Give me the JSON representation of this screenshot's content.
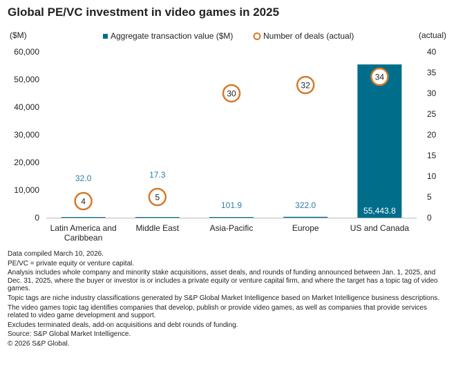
{
  "chart_data": {
    "type": "bar",
    "title": "Global PE/VC investment in video games in 2025",
    "categories": [
      "Latin America and\nCaribbean",
      "Middle East",
      "Asia-Pacific",
      "Europe",
      "US and Canada"
    ],
    "series": [
      {
        "name": "Aggregate transaction value ($M)",
        "axis": "left",
        "kind": "bar",
        "values": [
          32.0,
          17.3,
          101.9,
          322.0,
          55443.8
        ],
        "labels": [
          "32.0",
          "17.3",
          "101.9",
          "322.0",
          "55,443.8"
        ]
      },
      {
        "name": "Number of deals (actual)",
        "axis": "right",
        "kind": "marker",
        "values": [
          4,
          5,
          30,
          32,
          34
        ],
        "labels": [
          "4",
          "5",
          "30",
          "32",
          "34"
        ]
      }
    ],
    "yleft": {
      "unit_label": "($M)",
      "ylim": [
        0,
        60000
      ],
      "ticks": [
        "0",
        "10,000",
        "20,000",
        "30,000",
        "40,000",
        "50,000",
        "60,000"
      ]
    },
    "yright": {
      "unit_label": "(actual)",
      "ylim": [
        0,
        40
      ],
      "ticks": [
        "0",
        "5",
        "10",
        "15",
        "20",
        "25",
        "30",
        "35",
        "40"
      ]
    },
    "legend": "top",
    "grid": false
  },
  "colors": {
    "bar": "#006e8a",
    "bar_label_above": "#2b7ea6",
    "marker": "#d5792a",
    "axis": "#bbbbbb",
    "text": "#222222"
  },
  "notes": [
    "Data compiled March 10, 2026.",
    "PE/VC = private equity or venture capital.",
    "Analysis includes whole company and minority stake acquisitions, asset deals, and rounds of funding announced between Jan. 1, 2025, and Dec. 31, 2025, where the buyer or investor is or includes a private equity or venture capital firm, and where the target has a topic tag of video games.",
    "Topic tags are niche industry classifications generated by S&P Global Market Intelligence based on Market Intelligence business descriptions.",
    "The video games topic tag identifies companies that develop, publish or provide video games, as well as companies that provide services related to video game development and support.",
    "Excludes terminated deals, add-on acquisitions and debt rounds of funding.",
    "Source: S&P Global Market Intelligence.",
    "© 2026 S&P Global."
  ]
}
